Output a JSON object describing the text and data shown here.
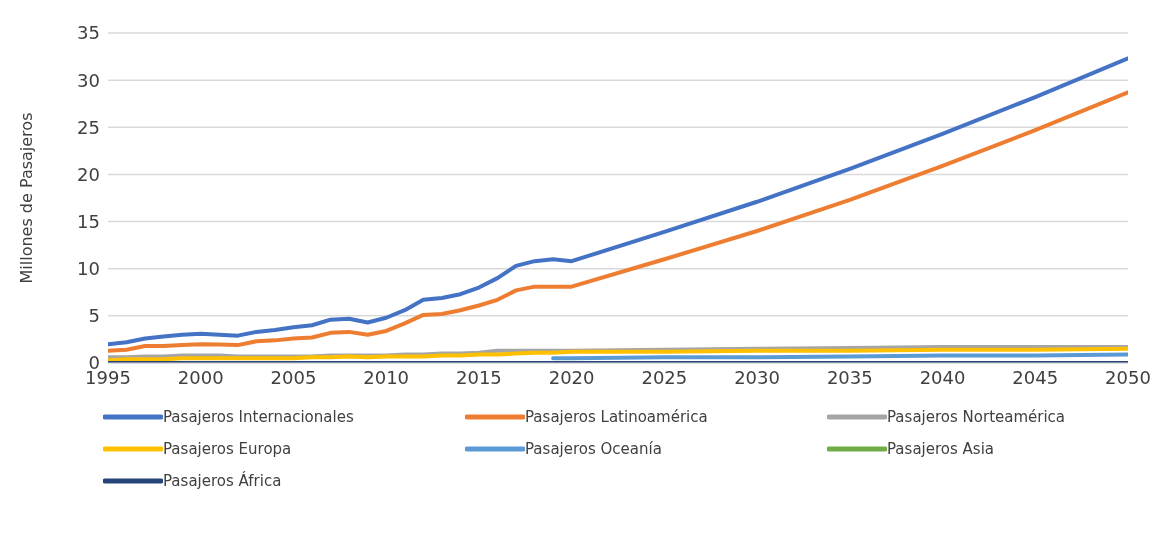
{
  "chart_data": {
    "type": "line",
    "ylabel": "Millones de Pasajeros",
    "x": [
      1995,
      1996,
      1997,
      1998,
      1999,
      2000,
      2001,
      2002,
      2003,
      2004,
      2005,
      2006,
      2007,
      2008,
      2009,
      2010,
      2011,
      2012,
      2013,
      2014,
      2015,
      2016,
      2017,
      2018,
      2019,
      2020,
      2025,
      2030,
      2035,
      2040,
      2045,
      2050
    ],
    "xlim": [
      1995,
      2050
    ],
    "xticks": [
      1995,
      2000,
      2005,
      2010,
      2015,
      2020,
      2025,
      2030,
      2035,
      2040,
      2045,
      2050
    ],
    "ylim": [
      0,
      35
    ],
    "yticks": [
      0,
      5,
      10,
      15,
      20,
      25,
      30,
      35
    ],
    "grid": "y",
    "legend": "bottom",
    "series": [
      {
        "name": "Pasajeros Internacionales",
        "color": "#4472c4",
        "values": [
          2.0,
          2.2,
          2.6,
          2.8,
          3.0,
          3.1,
          3.0,
          2.9,
          3.3,
          3.5,
          3.8,
          4.0,
          4.6,
          4.7,
          4.3,
          4.8,
          5.6,
          6.7,
          6.9,
          7.3,
          8.0,
          9.0,
          10.3,
          10.8,
          11.0,
          10.8,
          13.9,
          17.1,
          20.6,
          24.3,
          28.2,
          32.3
        ]
      },
      {
        "name": "Pasajeros Latinoamérica",
        "color": "#ed7d31",
        "values": [
          1.3,
          1.4,
          1.8,
          1.8,
          1.9,
          2.0,
          1.95,
          1.9,
          2.3,
          2.4,
          2.6,
          2.7,
          3.2,
          3.3,
          3.0,
          3.4,
          4.2,
          5.1,
          5.2,
          5.6,
          6.1,
          6.7,
          7.7,
          8.1,
          8.1,
          8.1,
          11.0,
          14.0,
          17.3,
          20.9,
          24.7,
          28.7
        ]
      },
      {
        "name": "Pasajeros Norteamérica",
        "color": "#a5a5a5",
        "values": [
          0.6,
          0.6,
          0.7,
          0.7,
          0.8,
          0.8,
          0.8,
          0.7,
          0.7,
          0.7,
          0.7,
          0.7,
          0.8,
          0.8,
          0.8,
          0.8,
          0.9,
          0.9,
          1.0,
          1.0,
          1.1,
          1.3,
          1.3,
          1.3,
          1.3,
          1.3,
          1.4,
          1.5,
          1.6,
          1.7,
          1.7,
          1.7
        ]
      },
      {
        "name": "Pasajeros Europa",
        "color": "#ffc000",
        "values": [
          0.3,
          0.4,
          0.4,
          0.4,
          0.5,
          0.5,
          0.5,
          0.5,
          0.5,
          0.5,
          0.5,
          0.6,
          0.6,
          0.7,
          0.6,
          0.7,
          0.7,
          0.7,
          0.8,
          0.8,
          0.9,
          0.9,
          1.0,
          1.1,
          1.1,
          1.2,
          1.2,
          1.3,
          1.3,
          1.4,
          1.4,
          1.5
        ]
      },
      {
        "name": "Pasajeros Oceanía",
        "color": "#5b9bd5",
        "values": [
          null,
          null,
          null,
          null,
          null,
          null,
          null,
          null,
          null,
          null,
          null,
          null,
          null,
          null,
          null,
          null,
          null,
          null,
          null,
          null,
          null,
          null,
          null,
          null,
          0.5,
          0.5,
          0.6,
          0.6,
          0.7,
          0.8,
          0.8,
          0.9
        ]
      },
      {
        "name": "Pasajeros Asia",
        "color": "#70ad47",
        "values": [
          null,
          null,
          null,
          null,
          null,
          null,
          null,
          null,
          null,
          null,
          null,
          null,
          null,
          null,
          null,
          null,
          null,
          null,
          null,
          null,
          null,
          null,
          null,
          null,
          null,
          null,
          null,
          null,
          null,
          null,
          null,
          null
        ]
      },
      {
        "name": "Pasajeros África",
        "color": "#264478",
        "values": [
          0,
          0,
          0,
          0,
          0,
          0,
          0,
          0,
          0,
          0,
          0,
          0,
          0,
          0,
          0,
          0,
          0,
          0,
          0,
          0,
          0,
          0,
          0,
          0,
          0,
          0,
          0,
          0,
          0,
          0,
          0,
          0
        ]
      }
    ]
  }
}
